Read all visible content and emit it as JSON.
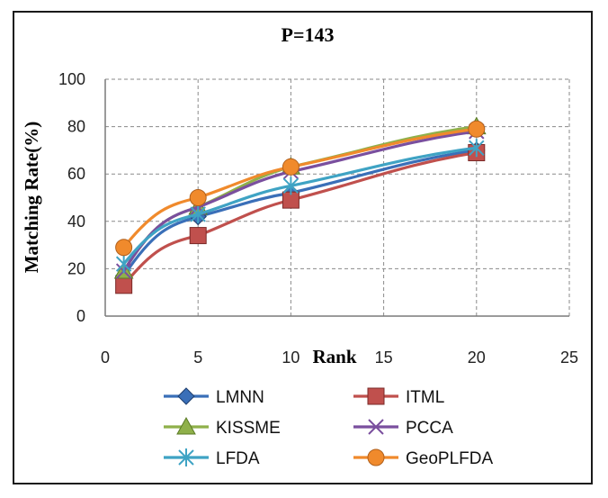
{
  "chart_data": {
    "type": "line",
    "title": "P=143",
    "xlabel": "Rank",
    "ylabel": "Matching Rate(%)",
    "xlim": [
      0,
      25
    ],
    "ylim": [
      0,
      100
    ],
    "xticks": [
      0,
      5,
      10,
      15,
      20,
      25
    ],
    "yticks": [
      0,
      20,
      40,
      60,
      80,
      100
    ],
    "grid": true,
    "legend_position": "bottom",
    "x": [
      1,
      5,
      10,
      20
    ],
    "series": [
      {
        "name": "LMNN",
        "values": [
          17,
          42,
          52,
          70
        ],
        "color": "#3a6fb8",
        "marker": "diamond"
      },
      {
        "name": "ITML",
        "values": [
          13,
          34,
          49,
          69
        ],
        "color": "#c0504d",
        "marker": "square"
      },
      {
        "name": "KISSME",
        "values": [
          19,
          46,
          63,
          80
        ],
        "color": "#8fb04a",
        "marker": "triangle"
      },
      {
        "name": "PCCA",
        "values": [
          19,
          46,
          61,
          78
        ],
        "color": "#7a4f9e",
        "marker": "x"
      },
      {
        "name": "LFDA",
        "values": [
          22,
          43,
          55,
          71
        ],
        "color": "#3fa3c4",
        "marker": "asterisk"
      },
      {
        "name": "GeoPLFDA",
        "values": [
          29,
          50,
          63,
          79
        ],
        "color": "#f08a2c",
        "marker": "circle"
      }
    ]
  }
}
